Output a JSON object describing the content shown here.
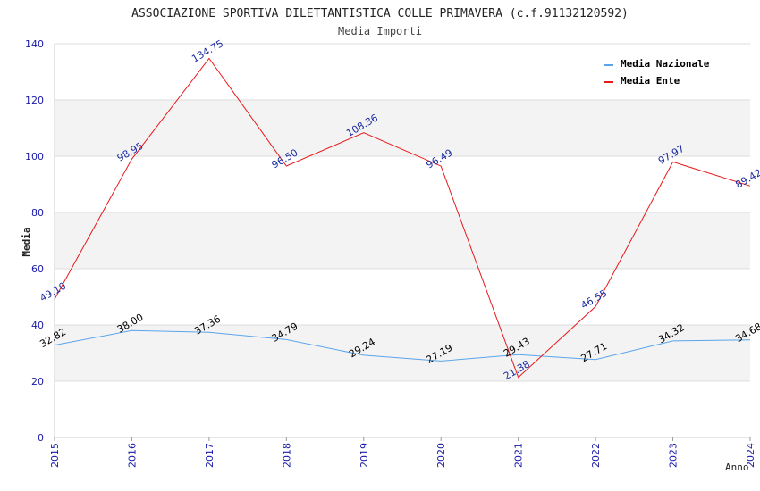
{
  "chart_data": {
    "type": "line",
    "title": "ASSOCIAZIONE SPORTIVA DILETTANTISTICA COLLE PRIMAVERA (c.f.91132120592)",
    "subtitle": "Media Importi",
    "xlabel": "Anno",
    "ylabel": "Media",
    "ylim": [
      0,
      140
    ],
    "yticks": [
      "0",
      "20",
      "40",
      "60",
      "80",
      "100",
      "120",
      "140"
    ],
    "categories": [
      "2015",
      "2016",
      "2017",
      "2018",
      "2019",
      "2020",
      "2021",
      "2022",
      "2023",
      "2024"
    ],
    "grid": true,
    "legend_position": "top-right",
    "series": [
      {
        "name": "Media Nazionale",
        "color": "#5aa5ea",
        "label_color": "#000000",
        "values": [
          32.82,
          38.0,
          37.36,
          34.79,
          29.24,
          27.19,
          29.43,
          27.71,
          34.32,
          34.68
        ],
        "labels": [
          "32.82",
          "38.00",
          "37.36",
          "34.79",
          "29.24",
          "27.19",
          "29.43",
          "27.71",
          "34.32",
          "34.68"
        ]
      },
      {
        "name": "Media Ente",
        "color": "#e8191b",
        "label_color": "#1a2aa0",
        "values": [
          49.1,
          98.95,
          134.75,
          96.5,
          108.36,
          96.49,
          21.38,
          46.55,
          97.97,
          89.42
        ],
        "labels": [
          "49.10",
          "98.95",
          "134.75",
          "96.50",
          "108.36",
          "96.49",
          "21.38",
          "46.55",
          "97.97",
          "89.42"
        ]
      }
    ]
  },
  "colors": {
    "axis_tick_text": "#1a1aaa",
    "band": "#f3f3f3",
    "grid": "#dddddd"
  }
}
